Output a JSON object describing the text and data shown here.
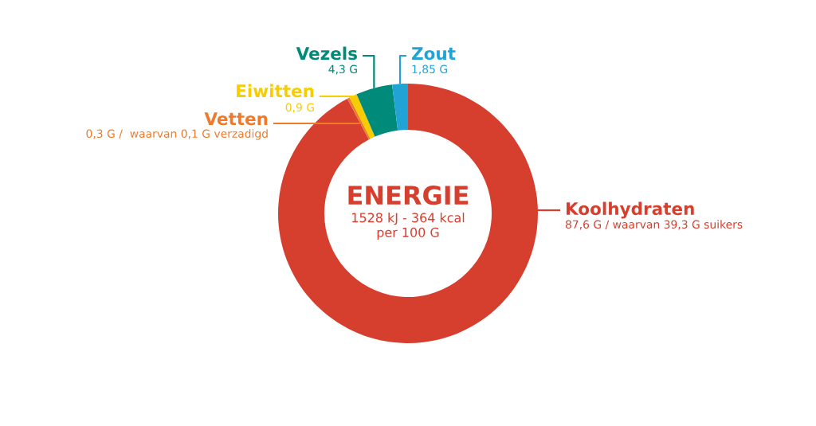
{
  "chart_data": {
    "type": "donut",
    "title": "ENERGIE",
    "subtitle": "1528 kJ - 364 kcal\nper 100 G",
    "categories": [
      "Koolhydraten",
      "Vetten",
      "Eiwitten",
      "Vezels",
      "Zout"
    ],
    "values": [
      87.6,
      0.3,
      0.9,
      4.3,
      1.85
    ],
    "value_labels": [
      "87,6 G / waarvan 39,3 G suikers",
      "0,3 G /  waarvan 0,1 G verzadigd",
      "0,9 G",
      "4,3 G",
      "1,85 G"
    ],
    "colors": [
      "#d63e2e",
      "#ee7a2a",
      "#f7cc00",
      "#008a7a",
      "#21a3d6"
    ]
  }
}
